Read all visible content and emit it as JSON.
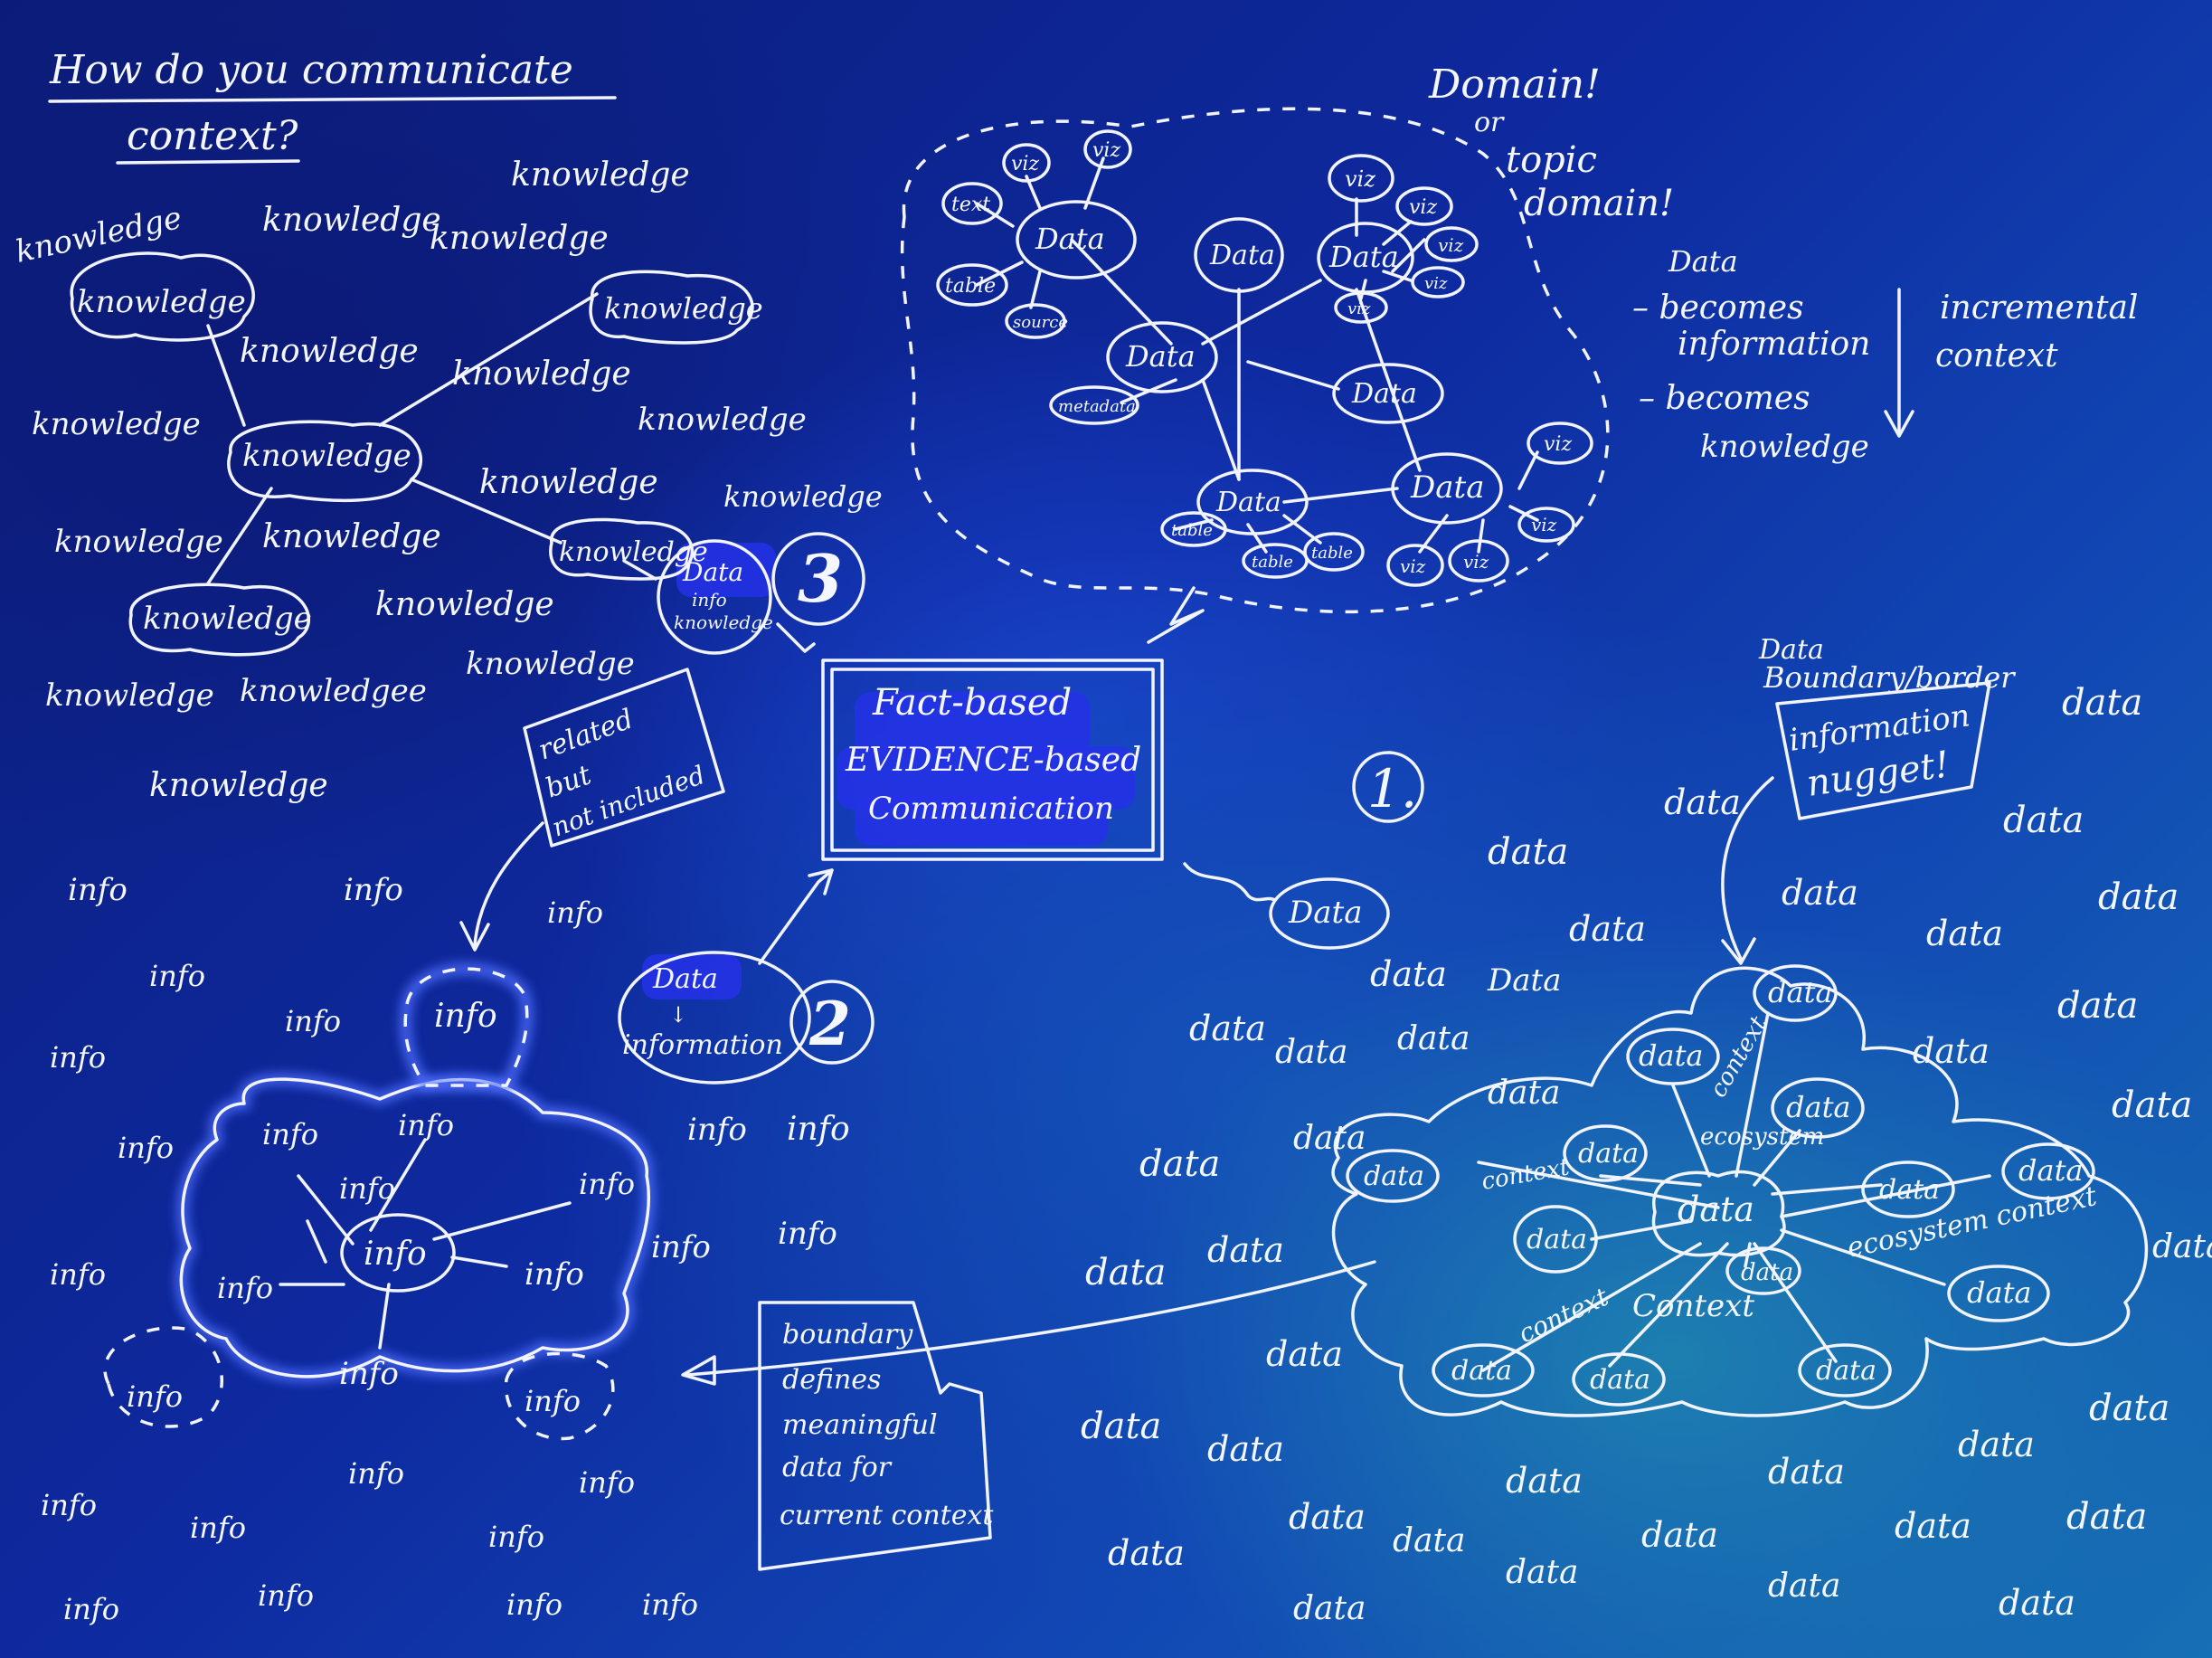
{
  "title": [
    "How do you communicate",
    "context?"
  ],
  "domain_note": [
    "Domain!",
    "or",
    "topic",
    "domain!"
  ],
  "progression": [
    "Data",
    "– becomes",
    "information",
    "– becomes",
    "knowledge"
  ],
  "incremental": [
    "incremental",
    "context"
  ],
  "center_box": [
    "Fact-based",
    "EVIDENCE-based",
    "Communication"
  ],
  "markers": [
    "1.",
    "2",
    "3"
  ],
  "node3_label": [
    "Data",
    "info",
    "knowledge"
  ],
  "node2_label": [
    "Data",
    "↓",
    "information"
  ],
  "related_box": [
    "related",
    "but",
    "not included"
  ],
  "boundary_box": [
    "boundary",
    "defines",
    "meaningful",
    "data for",
    "current context"
  ],
  "border_note": [
    "Data",
    "Boundary/border"
  ],
  "nugget_box": [
    "information",
    "nugget!"
  ],
  "words": {
    "knowledge": "knowledge",
    "knowledge_variant": "knowledgee",
    "info": "info",
    "data": "data",
    "data_cap": "Data",
    "viz": "viz",
    "text": "text",
    "table": "table",
    "source": "source",
    "metadata": "metadata",
    "context": "context",
    "context_cap": "Context",
    "ecosystem": "ecosystem",
    "ecosystem_context": "ecosystem context"
  }
}
